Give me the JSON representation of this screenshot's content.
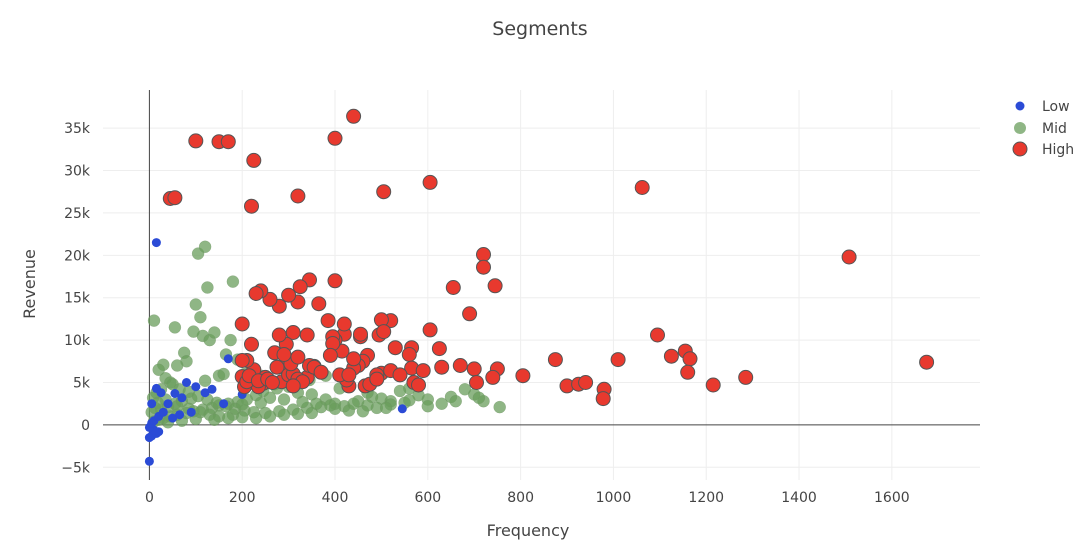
{
  "chart_data": {
    "type": "scatter",
    "title": "Segments",
    "xlabel": "Frequency",
    "ylabel": "Revenue",
    "xlim": [
      -100,
      1790
    ],
    "ylim": [
      -6500,
      39500
    ],
    "x_ticks": [
      0,
      200,
      400,
      600,
      800,
      1000,
      1200,
      1400,
      1600
    ],
    "x_tick_labels": [
      "0",
      "200",
      "400",
      "600",
      "800",
      "1000",
      "1200",
      "1400",
      "1600"
    ],
    "y_ticks": [
      -5000,
      0,
      5000,
      10000,
      15000,
      20000,
      25000,
      30000,
      35000
    ],
    "y_tick_labels": [
      "−5k",
      "0",
      "5k",
      "10k",
      "15k",
      "20k",
      "25k",
      "30k",
      "35k"
    ],
    "grid": true,
    "legend_position": "top-right",
    "series": [
      {
        "name": "Low",
        "color": "#2B4BD6",
        "marker_size": "small",
        "opacity": 1.0,
        "points": [
          [
            15,
            21500
          ],
          [
            0,
            -4300
          ],
          [
            0,
            -1500
          ],
          [
            5,
            -1300
          ],
          [
            15,
            -1000
          ],
          [
            20,
            -800
          ],
          [
            10,
            -600
          ],
          [
            0,
            -300
          ],
          [
            5,
            200
          ],
          [
            10,
            500
          ],
          [
            20,
            1000
          ],
          [
            30,
            1500
          ],
          [
            15,
            4300
          ],
          [
            25,
            3800
          ],
          [
            40,
            2500
          ],
          [
            55,
            3700
          ],
          [
            70,
            3200
          ],
          [
            80,
            5000
          ],
          [
            100,
            4500
          ],
          [
            120,
            3800
          ],
          [
            135,
            4200
          ],
          [
            160,
            2500
          ],
          [
            170,
            7800
          ],
          [
            200,
            3600
          ],
          [
            545,
            1900
          ],
          [
            5,
            2500
          ],
          [
            50,
            800
          ],
          [
            65,
            1200
          ],
          [
            90,
            1500
          ]
        ]
      },
      {
        "name": "Mid",
        "color": "#6A9E5C",
        "marker_size": "medium",
        "opacity": 0.75,
        "points": [
          [
            10,
            12300
          ],
          [
            55,
            11500
          ],
          [
            105,
            20200
          ],
          [
            120,
            21000
          ],
          [
            125,
            16200
          ],
          [
            180,
            16900
          ],
          [
            100,
            14200
          ],
          [
            110,
            12700
          ],
          [
            115,
            10500
          ],
          [
            130,
            10000
          ],
          [
            140,
            10900
          ],
          [
            95,
            11000
          ],
          [
            75,
            8500
          ],
          [
            80,
            7500
          ],
          [
            60,
            7000
          ],
          [
            30,
            7100
          ],
          [
            20,
            6500
          ],
          [
            35,
            5500
          ],
          [
            45,
            5000
          ],
          [
            50,
            4800
          ],
          [
            65,
            4200
          ],
          [
            85,
            3900
          ],
          [
            120,
            5200
          ],
          [
            150,
            5800
          ],
          [
            160,
            6000
          ],
          [
            165,
            8300
          ],
          [
            175,
            10000
          ],
          [
            190,
            7700
          ],
          [
            205,
            6000
          ],
          [
            220,
            6200
          ],
          [
            240,
            5800
          ],
          [
            255,
            5000
          ],
          [
            270,
            4800
          ],
          [
            300,
            4500
          ],
          [
            320,
            3800
          ],
          [
            350,
            3600
          ],
          [
            380,
            3000
          ],
          [
            400,
            2500
          ],
          [
            420,
            2200
          ],
          [
            450,
            2800
          ],
          [
            480,
            3300
          ],
          [
            500,
            3100
          ],
          [
            520,
            2800
          ],
          [
            550,
            2600
          ],
          [
            580,
            3500
          ],
          [
            600,
            3000
          ],
          [
            630,
            2500
          ],
          [
            650,
            3300
          ],
          [
            680,
            4200
          ],
          [
            700,
            3600
          ],
          [
            720,
            2800
          ],
          [
            755,
            2100
          ],
          [
            560,
            4300
          ],
          [
            540,
            4000
          ],
          [
            470,
            3800
          ],
          [
            410,
            4300
          ],
          [
            380,
            5800
          ],
          [
            345,
            5300
          ],
          [
            310,
            4800
          ],
          [
            275,
            4300
          ],
          [
            245,
            4000
          ],
          [
            230,
            3500
          ],
          [
            210,
            3000
          ],
          [
            190,
            2700
          ],
          [
            170,
            2500
          ],
          [
            150,
            2300
          ],
          [
            135,
            2000
          ],
          [
            115,
            1800
          ],
          [
            95,
            1600
          ],
          [
            80,
            1400
          ],
          [
            60,
            1200
          ],
          [
            45,
            1000
          ],
          [
            30,
            800
          ],
          [
            20,
            600
          ],
          [
            10,
            400
          ],
          [
            25,
            1800
          ],
          [
            40,
            2100
          ],
          [
            55,
            2500
          ],
          [
            70,
            2800
          ],
          [
            90,
            3100
          ],
          [
            105,
            3400
          ],
          [
            125,
            3000
          ],
          [
            145,
            2600
          ],
          [
            165,
            2200
          ],
          [
            185,
            1900
          ],
          [
            205,
            1700
          ],
          [
            225,
            1500
          ],
          [
            250,
            1400
          ],
          [
            280,
            1600
          ],
          [
            310,
            1800
          ],
          [
            340,
            2000
          ],
          [
            370,
            2100
          ],
          [
            400,
            1900
          ],
          [
            430,
            1700
          ],
          [
            460,
            1600
          ],
          [
            490,
            2000
          ],
          [
            520,
            2400
          ],
          [
            180,
            1200
          ],
          [
            200,
            900
          ],
          [
            230,
            800
          ],
          [
            260,
            1000
          ],
          [
            290,
            1200
          ],
          [
            320,
            1300
          ],
          [
            350,
            1400
          ],
          [
            5,
            1500
          ],
          [
            12,
            2000
          ],
          [
            18,
            2600
          ],
          [
            8,
            3200
          ],
          [
            15,
            3800
          ],
          [
            25,
            4200
          ],
          [
            35,
            3000
          ],
          [
            60,
            2200
          ],
          [
            85,
            1900
          ],
          [
            110,
            1500
          ],
          [
            130,
            1200
          ],
          [
            150,
            1000
          ],
          [
            170,
            800
          ],
          [
            40,
            300
          ],
          [
            70,
            500
          ],
          [
            100,
            700
          ],
          [
            140,
            600
          ],
          [
            200,
            2400
          ],
          [
            240,
            2600
          ],
          [
            260,
            3200
          ],
          [
            290,
            3000
          ],
          [
            330,
            2700
          ],
          [
            360,
            2500
          ],
          [
            390,
            2300
          ],
          [
            440,
            2500
          ],
          [
            470,
            2300
          ],
          [
            510,
            2000
          ],
          [
            600,
            2200
          ],
          [
            660,
            2800
          ],
          [
            710,
            3200
          ],
          [
            560,
            2900
          ]
        ]
      },
      {
        "name": "High",
        "color": "#E8392E",
        "marker_size": "large",
        "opacity": 1.0,
        "points": [
          [
            100,
            33500
          ],
          [
            150,
            33400
          ],
          [
            170,
            33400
          ],
          [
            225,
            31200
          ],
          [
            400,
            33800
          ],
          [
            440,
            36400
          ],
          [
            45,
            26700
          ],
          [
            55,
            26800
          ],
          [
            220,
            25800
          ],
          [
            320,
            27000
          ],
          [
            505,
            27500
          ],
          [
            605,
            28600
          ],
          [
            1062,
            28000
          ],
          [
            720,
            20100
          ],
          [
            720,
            18600
          ],
          [
            745,
            16400
          ],
          [
            655,
            16200
          ],
          [
            690,
            13100
          ],
          [
            605,
            11200
          ],
          [
            1508,
            19800
          ],
          [
            1095,
            10600
          ],
          [
            1155,
            8700
          ],
          [
            1125,
            8100
          ],
          [
            1165,
            7800
          ],
          [
            1160,
            6200
          ],
          [
            1010,
            7700
          ],
          [
            875,
            7700
          ],
          [
            900,
            4600
          ],
          [
            925,
            4800
          ],
          [
            940,
            5000
          ],
          [
            980,
            4200
          ],
          [
            978,
            3100
          ],
          [
            1215,
            4700
          ],
          [
            1285,
            5600
          ],
          [
            1675,
            7400
          ],
          [
            805,
            5800
          ],
          [
            750,
            6600
          ],
          [
            740,
            5600
          ],
          [
            700,
            6600
          ],
          [
            705,
            5000
          ],
          [
            670,
            7000
          ],
          [
            630,
            6800
          ],
          [
            625,
            9000
          ],
          [
            565,
            9100
          ],
          [
            560,
            8300
          ],
          [
            565,
            6700
          ],
          [
            570,
            5000
          ],
          [
            530,
            9100
          ],
          [
            520,
            12300
          ],
          [
            500,
            12400
          ],
          [
            495,
            10600
          ],
          [
            505,
            11000
          ],
          [
            500,
            6100
          ],
          [
            490,
            5900
          ],
          [
            470,
            8200
          ],
          [
            465,
            4600
          ],
          [
            460,
            7500
          ],
          [
            450,
            7000
          ],
          [
            455,
            10400
          ],
          [
            455,
            10700
          ],
          [
            440,
            6700
          ],
          [
            430,
            4600
          ],
          [
            425,
            5300
          ],
          [
            420,
            10700
          ],
          [
            420,
            11900
          ],
          [
            415,
            8700
          ],
          [
            400,
            10000
          ],
          [
            400,
            17000
          ],
          [
            395,
            10400
          ],
          [
            395,
            9600
          ],
          [
            385,
            12300
          ],
          [
            365,
            14300
          ],
          [
            355,
            6900
          ],
          [
            345,
            17100
          ],
          [
            340,
            10600
          ],
          [
            340,
            5600
          ],
          [
            325,
            16300
          ],
          [
            320,
            14500
          ],
          [
            310,
            10900
          ],
          [
            300,
            15300
          ],
          [
            295,
            9500
          ],
          [
            290,
            6800
          ],
          [
            285,
            5100
          ],
          [
            280,
            14000
          ],
          [
            280,
            10600
          ],
          [
            275,
            6800
          ],
          [
            270,
            8500
          ],
          [
            260,
            14800
          ],
          [
            250,
            5600
          ],
          [
            245,
            4900
          ],
          [
            240,
            15800
          ],
          [
            235,
            4500
          ],
          [
            230,
            15500
          ],
          [
            225,
            6500
          ],
          [
            220,
            9500
          ],
          [
            210,
            7600
          ],
          [
            200,
            11900
          ],
          [
            200,
            7600
          ],
          [
            200,
            5700
          ],
          [
            205,
            4500
          ],
          [
            210,
            5100
          ],
          [
            215,
            5800
          ],
          [
            235,
            5200
          ],
          [
            255,
            5400
          ],
          [
            265,
            5000
          ],
          [
            300,
            5900
          ],
          [
            310,
            6000
          ],
          [
            320,
            5400
          ],
          [
            330,
            5100
          ],
          [
            345,
            7000
          ],
          [
            355,
            6800
          ],
          [
            370,
            6200
          ],
          [
            390,
            8200
          ],
          [
            410,
            5900
          ],
          [
            430,
            5900
          ],
          [
            440,
            7800
          ],
          [
            475,
            4800
          ],
          [
            490,
            5400
          ],
          [
            520,
            6400
          ],
          [
            540,
            5900
          ],
          [
            580,
            4700
          ],
          [
            590,
            6400
          ],
          [
            305,
            7200
          ],
          [
            310,
            4600
          ],
          [
            290,
            8300
          ],
          [
            320,
            8000
          ]
        ]
      }
    ]
  }
}
